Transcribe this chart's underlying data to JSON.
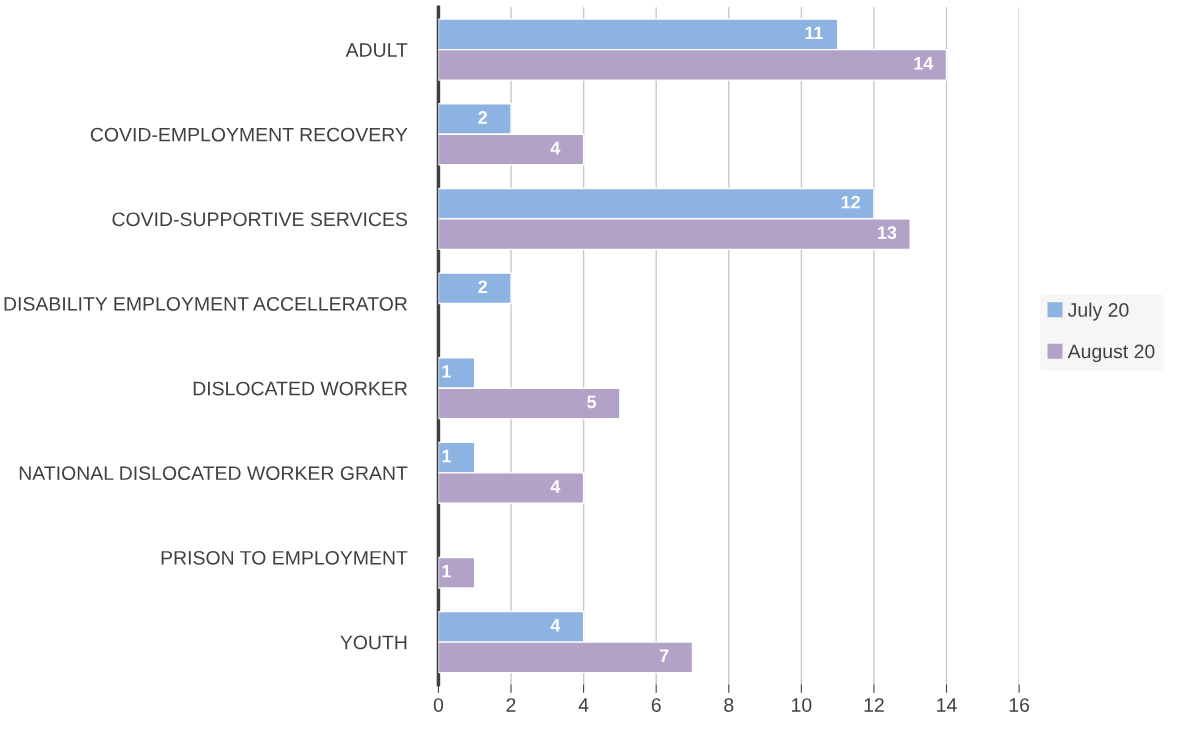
{
  "chart_data": {
    "type": "bar",
    "orientation": "horizontal",
    "categories": [
      "ADULT",
      "COVID-EMPLOYMENT RECOVERY",
      "COVID-SUPPORTIVE SERVICES",
      "DISABILITY EMPLOYMENT ACCELLERATOR",
      "DISLOCATED WORKER",
      "NATIONAL DISLOCATED WORKER GRANT",
      "PRISON TO EMPLOYMENT",
      "YOUTH"
    ],
    "series": [
      {
        "name": "July 20",
        "color": "#8db3e2",
        "values": [
          11,
          2,
          12,
          2,
          1,
          1,
          null,
          4
        ]
      },
      {
        "name": "August 20",
        "color": "#b3a2c7",
        "values": [
          14,
          4,
          13,
          null,
          5,
          4,
          1,
          7
        ]
      }
    ],
    "xlim": [
      0,
      16
    ],
    "xticks": [
      0,
      2,
      4,
      6,
      8,
      10,
      12,
      14,
      16
    ],
    "grid": "x",
    "legend": "right",
    "data_labels": true
  }
}
